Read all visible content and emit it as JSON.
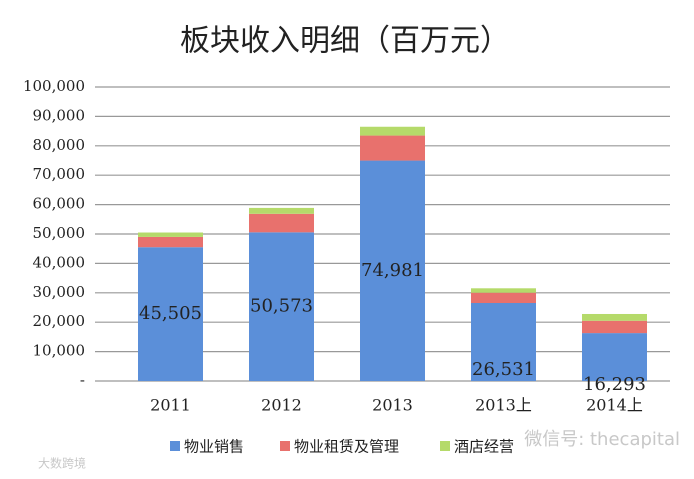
{
  "chart_data": {
    "type": "stacked_bar",
    "title": "板块收入明细（百万元）",
    "categories": [
      "2011",
      "2012",
      "2013",
      "2013上",
      "2014上"
    ],
    "series": [
      {
        "name": "物业销售",
        "color": "#5b8fd9",
        "values": [
          45505,
          50573,
          74981,
          26531,
          16293
        ],
        "value_labels": [
          "45,505",
          "50,573",
          "74,981",
          "26,531",
          "16,293"
        ]
      },
      {
        "name": "物业租赁及管理",
        "color": "#e8716d",
        "values": [
          3500,
          6300,
          8500,
          3500,
          4200
        ]
      },
      {
        "name": "酒店经营",
        "color": "#b5da6a",
        "values": [
          1500,
          2000,
          3000,
          1500,
          2300
        ]
      }
    ],
    "ylim": [
      0,
      100000
    ],
    "yticks": [
      {
        "value": 0,
        "label": "-"
      },
      {
        "value": 10000,
        "label": "10,000"
      },
      {
        "value": 20000,
        "label": "20,000"
      },
      {
        "value": 30000,
        "label": "30,000"
      },
      {
        "value": 40000,
        "label": "40,000"
      },
      {
        "value": 50000,
        "label": "50,000"
      },
      {
        "value": 60000,
        "label": "60,000"
      },
      {
        "value": 70000,
        "label": "70,000"
      },
      {
        "value": 80000,
        "label": "80,000"
      },
      {
        "value": 90000,
        "label": "90,000"
      },
      {
        "value": 100000,
        "label": "100,000"
      }
    ],
    "grid": true,
    "legend": "bottom",
    "watermarks": [
      "微信号: thecapital",
      "大数跨境"
    ]
  }
}
